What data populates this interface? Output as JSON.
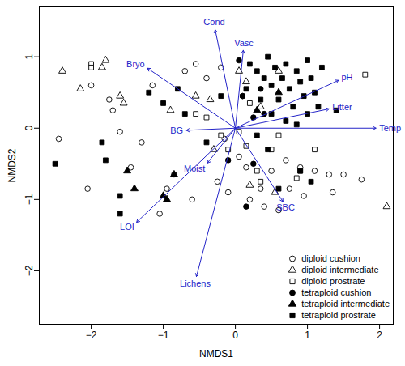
{
  "chart_data": {
    "type": "scatter",
    "x_label": "NMDS1",
    "y_label": "NMDS2",
    "xlim": [
      -2.72,
      2.19
    ],
    "ylim": [
      -2.75,
      1.7
    ],
    "xticks": [
      {
        "value": -2,
        "label": "−2"
      },
      {
        "value": -1,
        "label": "−1"
      },
      0,
      1,
      2
    ],
    "yticks": [
      {
        "value": -2,
        "label": "−2"
      },
      {
        "value": -1,
        "label": "−1"
      },
      0,
      1
    ],
    "legend": "bottom-right",
    "arrow_color": "#2424c8",
    "arrows": [
      {
        "name": "Cond",
        "x": -0.28,
        "y": 1.38
      },
      {
        "name": "Vasc",
        "x": 0.11,
        "y": 1.09
      },
      {
        "name": "pH",
        "x": 1.43,
        "y": 0.67
      },
      {
        "name": "Litter",
        "x": 1.3,
        "y": 0.27
      },
      {
        "name": "Temp",
        "x": 1.95,
        "y": 0.0
      },
      {
        "name": "SBC",
        "x": 0.66,
        "y": -1.03
      },
      {
        "name": "Lichens",
        "x": -0.54,
        "y": -2.08
      },
      {
        "name": "LOI",
        "x": -1.37,
        "y": -1.32
      },
      {
        "name": "Moist",
        "x": -0.39,
        "y": -0.49
      },
      {
        "name": "BG",
        "x": -0.68,
        "y": -0.03
      },
      {
        "name": "Bryo",
        "x": -1.22,
        "y": 0.84
      }
    ],
    "series": [
      {
        "name": "diploid cushion",
        "color": "#000000",
        "marker": "circle-open",
        "x": [
          -2.45,
          -2.05,
          -1.75,
          -1.7,
          -1.6,
          -1.45,
          -1.15,
          -1.05,
          -0.95,
          -0.7,
          -0.55,
          -0.4,
          -0.2,
          0.1,
          -0.15,
          0.05,
          0.15,
          -0.25,
          -0.1,
          0.2,
          0.35,
          0.5,
          0.7,
          0.9,
          1.1,
          1.3,
          1.5,
          1.75,
          1.35,
          0.95,
          0.75,
          -1.3,
          -2.0,
          -0.6,
          -0.85,
          0.4,
          0.6
        ],
        "y": [
          -0.15,
          -0.85,
          0.4,
          0.25,
          -0.05,
          -0.55,
          0.6,
          -1.2,
          -0.85,
          0.8,
          0.9,
          0.7,
          0.85,
          0.45,
          -0.15,
          -0.4,
          -0.55,
          -0.75,
          -0.9,
          -1.0,
          -0.85,
          -0.6,
          -0.45,
          -0.55,
          -0.6,
          -0.65,
          -0.65,
          -0.72,
          -0.9,
          -0.95,
          -0.85,
          -0.2,
          0.6,
          -1.0,
          -0.65,
          -1.1,
          -1.15
        ]
      },
      {
        "name": "diploid intermediate",
        "color": "#000000",
        "marker": "triangle-open",
        "x": [
          -2.4,
          -2.15,
          -1.85,
          -1.8,
          -1.6,
          -1.55,
          -0.9,
          -0.55,
          -0.35,
          0.05,
          0.15,
          0.6,
          0.2,
          0.55,
          2.1,
          -0.3,
          0.35
        ],
        "y": [
          0.8,
          0.55,
          0.85,
          0.95,
          0.45,
          0.35,
          0.25,
          0.45,
          0.4,
          0.8,
          0.65,
          0.8,
          -0.8,
          -0.9,
          -1.1,
          -0.3,
          0.3
        ]
      },
      {
        "name": "diploid prostrate",
        "color": "#000000",
        "marker": "square-open",
        "x": [
          -2.0,
          -2.0,
          -0.55,
          -0.4,
          -0.2,
          0.05,
          0.15,
          0.3,
          0.5,
          0.35,
          0.85,
          0.9,
          1.1,
          1.8,
          0.2,
          -0.1,
          0.6
        ],
        "y": [
          0.9,
          0.85,
          0.2,
          0.15,
          -0.1,
          -0.05,
          -0.25,
          -0.6,
          -0.3,
          -0.75,
          -0.7,
          -0.6,
          -0.3,
          0.75,
          0.35,
          -0.3,
          -0.1
        ]
      },
      {
        "name": "tetraploid cushion",
        "color": "#000000",
        "marker": "circle",
        "x": [
          0.05,
          0.1,
          0.35,
          0.25,
          -0.1,
          0.15,
          0.4,
          0.25
        ],
        "y": [
          0.95,
          0.45,
          0.55,
          -0.5,
          -0.45,
          -1.1,
          0.2,
          0.15
        ]
      },
      {
        "name": "tetraploid intermediate",
        "color": "#000000",
        "marker": "triangle",
        "x": [
          -1.4,
          -1.0,
          -0.95,
          -0.85,
          0.3,
          0.6,
          -1.5
        ],
        "y": [
          -0.85,
          -0.95,
          -1.0,
          -0.65,
          0.25,
          0.5,
          -0.6
        ]
      },
      {
        "name": "tetraploid prostrate",
        "color": "#000000",
        "marker": "square",
        "x": [
          -2.5,
          -1.85,
          -1.8,
          -1.6,
          -1.6,
          -1.2,
          -1.0,
          -0.8,
          -0.7,
          -0.4,
          0.2,
          0.3,
          0.4,
          0.45,
          0.5,
          0.55,
          0.6,
          0.65,
          0.7,
          0.75,
          0.8,
          0.85,
          0.9,
          0.95,
          1.0,
          1.0,
          1.05,
          1.1,
          1.15,
          1.2,
          0.35,
          0.5,
          0.15,
          0.7,
          0.9,
          1.05,
          0.6,
          -0.2,
          0.3,
          0.85,
          0.45,
          1.4
        ],
        "y": [
          -0.5,
          -0.2,
          -0.45,
          -0.95,
          -1.2,
          0.5,
          0.35,
          0.55,
          0.2,
          -0.2,
          0.9,
          0.8,
          0.7,
          1.0,
          0.6,
          0.85,
          0.4,
          0.7,
          0.9,
          0.55,
          0.3,
          0.8,
          0.65,
          0.45,
          0.95,
          0.2,
          0.7,
          0.5,
          0.3,
          0.85,
          0.4,
          0.2,
          0.55,
          0.1,
          -0.6,
          -0.75,
          -0.85,
          0.45,
          -0.1,
          0.05,
          -0.3,
          0.25
        ]
      }
    ]
  }
}
